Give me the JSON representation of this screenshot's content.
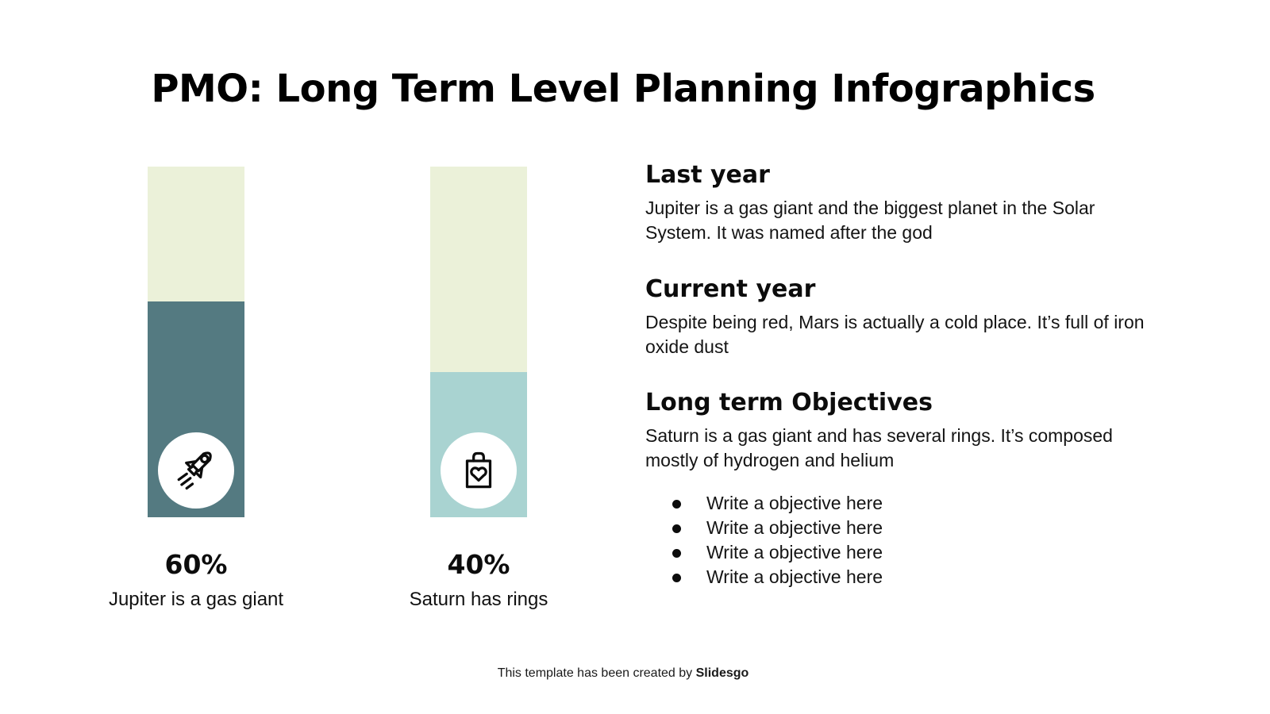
{
  "title": "PMO: Long Term Level Planning Infographics",
  "chart_data": {
    "type": "bar",
    "title": "PMO: Long Term Level Planning Infographics",
    "categories": [
      "Jupiter is a gas giant",
      "Saturn has rings"
    ],
    "values": [
      60,
      40
    ],
    "unit": "%",
    "ylim": [
      0,
      100
    ],
    "grid": false,
    "legend": "none",
    "bars": [
      {
        "percent_label": "60%",
        "value": 60,
        "caption": "Jupiter is a gas giant",
        "icon": "rocket-icon",
        "fill_color": "#547a81",
        "track_color": "#ebf1d9"
      },
      {
        "percent_label": "40%",
        "value": 40,
        "caption": "Saturn has rings",
        "icon": "shopping-bag-heart-icon",
        "fill_color": "#a9d3d1",
        "track_color": "#ebf1d9"
      }
    ]
  },
  "sections": [
    {
      "heading": "Last year",
      "body": "Jupiter is a gas giant and the biggest planet in the Solar System. It was named after the god"
    },
    {
      "heading": "Current year",
      "body": "Despite being red, Mars is actually a cold place. It’s full of iron oxide dust"
    },
    {
      "heading": "Long term Objectives",
      "body": "Saturn is a gas giant and has several rings. It’s composed mostly of hydrogen and helium"
    }
  ],
  "objectives": {
    "items": [
      "Write a objective here",
      "Write a objective here",
      "Write a objective here",
      "Write a objective here"
    ]
  },
  "footer": {
    "text": "This template has been created by ",
    "brand": "Slidesgo"
  },
  "colors": {
    "background": "#ffffff",
    "bar_fill_dark_teal": "#547a81",
    "bar_fill_light_teal": "#a9d3d1",
    "bar_track_cream": "#ebf1d9",
    "text": "#111111"
  }
}
